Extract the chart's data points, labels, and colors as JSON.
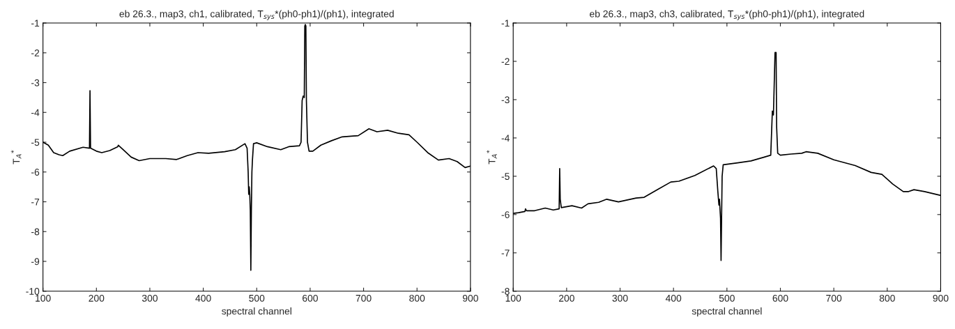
{
  "chart_data": [
    {
      "type": "line",
      "title": "eb 26.3., map3, ch1, calibrated, T$_{sys}$*(ph0-ph1)/(ph1), integrated",
      "xlabel": "spectral channel",
      "ylabel": "T$_{A}$$^{*}$",
      "xlim": [
        100,
        900
      ],
      "xticks": [
        100,
        200,
        300,
        400,
        500,
        600,
        700,
        800,
        900
      ],
      "ylim": [
        -10,
        -1
      ],
      "yticks": [
        -10,
        -9,
        -8,
        -7,
        -6,
        -5,
        -4,
        -3,
        -2,
        -1
      ],
      "grid": false,
      "series": [
        {
          "color": "#000000",
          "x": [
            100,
            110,
            120,
            130,
            137,
            150,
            175,
            187,
            188,
            189,
            200,
            210,
            225,
            240,
            241,
            250,
            265,
            280,
            300,
            330,
            350,
            370,
            390,
            410,
            440,
            460,
            478,
            482,
            484,
            485,
            486,
            487,
            488,
            489,
            490,
            491,
            492,
            494,
            500,
            520,
            545,
            560,
            580,
            583,
            585,
            587,
            589,
            590,
            591,
            592,
            593,
            595,
            598,
            605,
            620,
            640,
            660,
            690,
            710,
            725,
            745,
            765,
            785,
            800,
            820,
            840,
            860,
            875,
            890,
            900
          ],
          "values": [
            -5.0,
            -5.1,
            -5.35,
            -5.42,
            -5.45,
            -5.3,
            -5.17,
            -5.2,
            -3.27,
            -5.2,
            -5.3,
            -5.35,
            -5.28,
            -5.15,
            -5.1,
            -5.25,
            -5.5,
            -5.62,
            -5.55,
            -5.55,
            -5.58,
            -5.45,
            -5.35,
            -5.37,
            -5.32,
            -5.25,
            -5.05,
            -5.2,
            -6.0,
            -6.75,
            -6.5,
            -6.75,
            -7.3,
            -9.3,
            -7.3,
            -6.0,
            -5.6,
            -5.05,
            -5.02,
            -5.15,
            -5.25,
            -5.15,
            -5.12,
            -5.0,
            -3.6,
            -3.45,
            -3.5,
            -1.1,
            -1.05,
            -1.1,
            -3.6,
            -5.0,
            -5.3,
            -5.3,
            -5.1,
            -4.95,
            -4.82,
            -4.78,
            -4.55,
            -4.65,
            -4.6,
            -4.7,
            -4.75,
            -5.0,
            -5.35,
            -5.6,
            -5.55,
            -5.65,
            -5.85,
            -5.8
          ]
        }
      ]
    },
    {
      "type": "line",
      "title": "eb 26.3., map3, ch3, calibrated, T$_{sys}$*(ph0-ph1)/(ph1), integrated",
      "xlabel": "spectral channel",
      "ylabel": "T$_{A}$$^{*}$",
      "xlim": [
        100,
        900
      ],
      "xticks": [
        100,
        200,
        300,
        400,
        500,
        600,
        700,
        800,
        900
      ],
      "ylim": [
        -8,
        -1
      ],
      "yticks": [
        -8,
        -7,
        -6,
        -5,
        -4,
        -3,
        -2,
        -1
      ],
      "grid": false,
      "series": [
        {
          "color": "#000000",
          "x": [
            100,
            110,
            122,
            123,
            125,
            140,
            160,
            175,
            186,
            187,
            188,
            190,
            210,
            228,
            240,
            260,
            275,
            297,
            330,
            345,
            370,
            395,
            410,
            440,
            475,
            480,
            483,
            485,
            486,
            488,
            489,
            490,
            491,
            493,
            520,
            545,
            570,
            582,
            585,
            587,
            590,
            592,
            593,
            595,
            600,
            620,
            640,
            648,
            670,
            700,
            740,
            770,
            790,
            810,
            830,
            840,
            850,
            870,
            900
          ],
          "values": [
            -5.97,
            -5.95,
            -5.92,
            -5.85,
            -5.9,
            -5.9,
            -5.83,
            -5.88,
            -5.85,
            -4.8,
            -5.6,
            -5.82,
            -5.77,
            -5.83,
            -5.72,
            -5.68,
            -5.6,
            -5.67,
            -5.57,
            -5.55,
            -5.35,
            -5.15,
            -5.13,
            -4.98,
            -4.73,
            -4.8,
            -5.4,
            -5.75,
            -5.6,
            -6.1,
            -7.2,
            -6.1,
            -5.0,
            -4.7,
            -4.65,
            -4.6,
            -4.5,
            -4.45,
            -3.3,
            -3.4,
            -1.77,
            -1.77,
            -3.7,
            -4.4,
            -4.45,
            -4.42,
            -4.4,
            -4.36,
            -4.4,
            -4.57,
            -4.72,
            -4.9,
            -4.95,
            -5.2,
            -5.4,
            -5.4,
            -5.35,
            -5.4,
            -5.5
          ]
        }
      ]
    }
  ]
}
